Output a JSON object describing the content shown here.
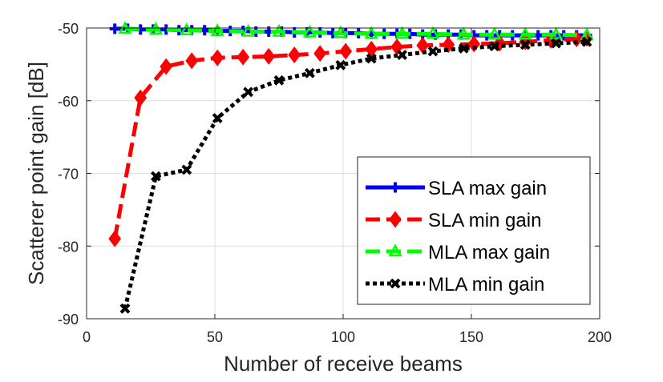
{
  "chart_data": {
    "type": "line",
    "title": "",
    "xlabel": "Number of receive beams",
    "ylabel": "Scatterer point gain [dB]",
    "xlim": [
      0,
      200
    ],
    "ylim": [
      -90,
      -50
    ],
    "xticks": [
      0,
      50,
      100,
      150,
      200
    ],
    "yticks": [
      -90,
      -80,
      -70,
      -60,
      -50
    ],
    "grid": true,
    "legend_position": "bottom-right",
    "series": [
      {
        "name": "SLA max gain",
        "color": "#0000ff",
        "style": "solid",
        "marker": "plus",
        "x": [
          11,
          16,
          21,
          26,
          31,
          36,
          41,
          46,
          51,
          56,
          61,
          66,
          71,
          76,
          81,
          86,
          91,
          96,
          101,
          106,
          111,
          116,
          121,
          126,
          131,
          136,
          141,
          146,
          151,
          156,
          161,
          166,
          171,
          176,
          181,
          186,
          191,
          195
        ],
        "y": [
          -50.1,
          -50.1,
          -50.2,
          -50.2,
          -50.2,
          -50.3,
          -50.3,
          -50.3,
          -50.4,
          -50.4,
          -50.4,
          -50.5,
          -50.5,
          -50.5,
          -50.6,
          -50.6,
          -50.6,
          -50.7,
          -50.7,
          -50.7,
          -50.8,
          -50.8,
          -50.8,
          -50.8,
          -50.9,
          -50.9,
          -50.9,
          -50.9,
          -51.0,
          -51.0,
          -51.0,
          -51.0,
          -51.0,
          -51.0,
          -51.0,
          -51.0,
          -51.0,
          -51.0
        ]
      },
      {
        "name": "SLA min gain",
        "color": "#ff0000",
        "style": "dashed",
        "marker": "diamond",
        "x": [
          11,
          21,
          31,
          41,
          51,
          61,
          71,
          81,
          91,
          101,
          111,
          121,
          131,
          141,
          151,
          161,
          171,
          181,
          191,
          195
        ],
        "y": [
          -79.0,
          -59.6,
          -55.3,
          -54.5,
          -54.1,
          -54.0,
          -53.9,
          -53.7,
          -53.5,
          -53.2,
          -52.9,
          -52.6,
          -52.4,
          -52.3,
          -52.2,
          -52.1,
          -51.9,
          -51.7,
          -51.5,
          -51.4
        ]
      },
      {
        "name": "MLA max gain",
        "color": "#00ff00",
        "style": "dashed",
        "marker": "triangle",
        "x": [
          15,
          27,
          39,
          51,
          63,
          75,
          87,
          99,
          111,
          123,
          135,
          147,
          159,
          171,
          183,
          195
        ],
        "y": [
          -50.1,
          -50.2,
          -50.3,
          -50.4,
          -50.5,
          -50.5,
          -50.6,
          -50.7,
          -50.8,
          -50.8,
          -50.8,
          -50.9,
          -50.9,
          -50.9,
          -50.9,
          -51.0
        ]
      },
      {
        "name": "MLA min gain",
        "color": "#000000",
        "style": "dotted",
        "marker": "x",
        "x": [
          15,
          27,
          39,
          51,
          63,
          75,
          87,
          99,
          111,
          123,
          135,
          147,
          159,
          171,
          183,
          195
        ],
        "y": [
          -88.6,
          -70.4,
          -69.5,
          -62.4,
          -58.8,
          -57.2,
          -56.2,
          -55.1,
          -54.2,
          -53.7,
          -53.2,
          -52.8,
          -52.5,
          -52.3,
          -52.1,
          -51.9
        ]
      }
    ]
  }
}
